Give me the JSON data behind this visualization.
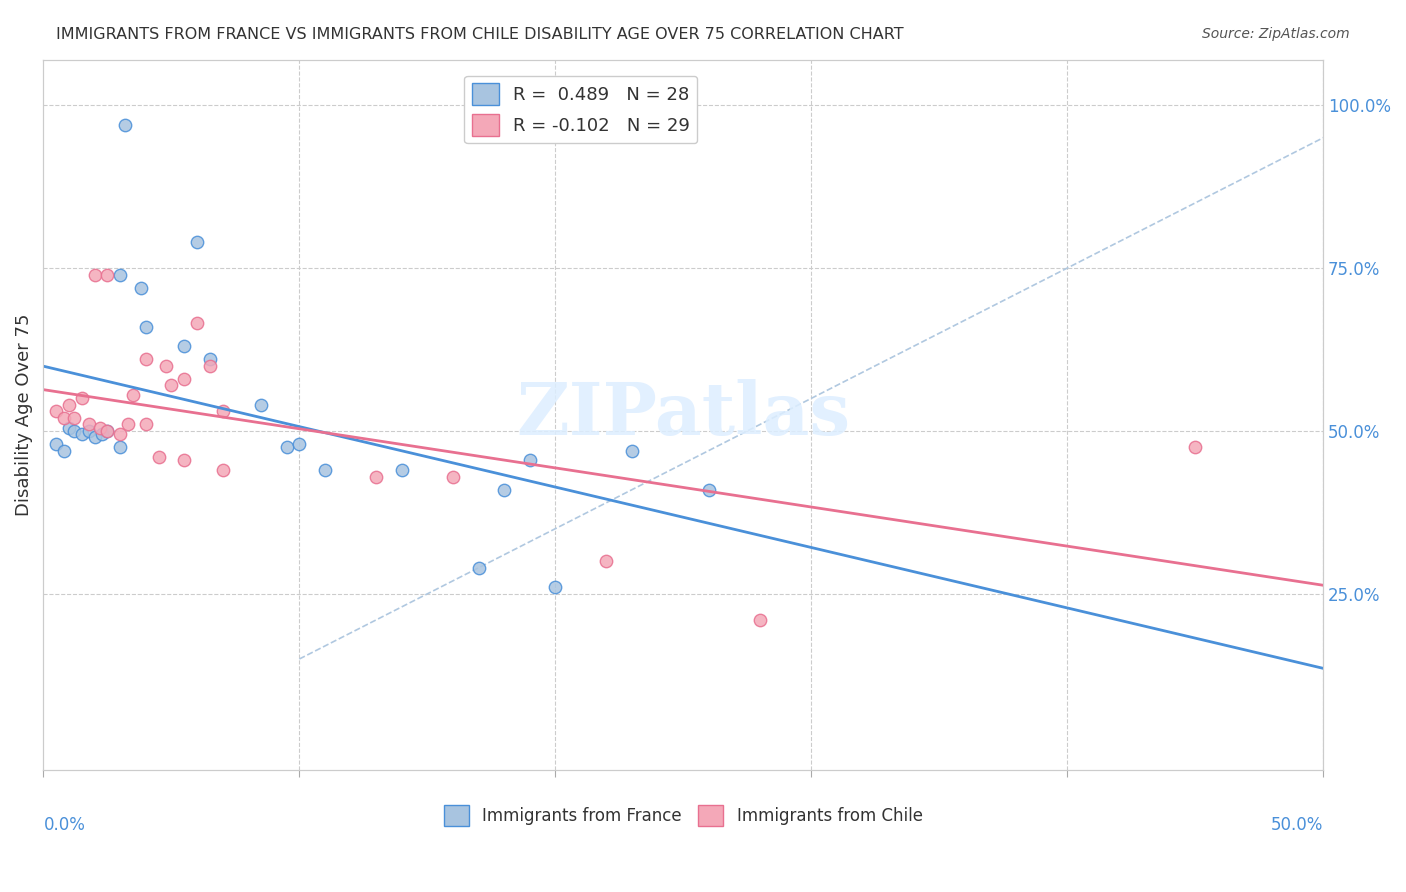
{
  "title": "IMMIGRANTS FROM FRANCE VS IMMIGRANTS FROM CHILE DISABILITY AGE OVER 75 CORRELATION CHART",
  "source": "Source: ZipAtlas.com",
  "ylabel": "Disability Age Over 75",
  "ytick_labels": [
    "100.0%",
    "75.0%",
    "50.0%",
    "25.0%"
  ],
  "ytick_positions": [
    1.0,
    0.75,
    0.5,
    0.25
  ],
  "xlim": [
    0.0,
    0.5
  ],
  "ylim": [
    -0.02,
    1.07
  ],
  "legend_france_R": "0.489",
  "legend_france_N": "28",
  "legend_chile_R": "-0.102",
  "legend_chile_N": "29",
  "france_color": "#a8c4e0",
  "chile_color": "#f4a8b8",
  "france_line_color": "#4a90d9",
  "chile_line_color": "#e87090",
  "diagonal_color": "#b0c8e0",
  "france_scatter": [
    [
      0.032,
      0.97
    ],
    [
      0.06,
      0.79
    ],
    [
      0.03,
      0.74
    ],
    [
      0.038,
      0.72
    ],
    [
      0.04,
      0.66
    ],
    [
      0.055,
      0.63
    ],
    [
      0.065,
      0.61
    ],
    [
      0.085,
      0.54
    ],
    [
      0.01,
      0.505
    ],
    [
      0.012,
      0.5
    ],
    [
      0.015,
      0.495
    ],
    [
      0.018,
      0.5
    ],
    [
      0.02,
      0.49
    ],
    [
      0.023,
      0.495
    ],
    [
      0.03,
      0.475
    ],
    [
      0.005,
      0.48
    ],
    [
      0.008,
      0.47
    ],
    [
      0.025,
      0.5
    ],
    [
      0.095,
      0.475
    ],
    [
      0.1,
      0.48
    ],
    [
      0.11,
      0.44
    ],
    [
      0.14,
      0.44
    ],
    [
      0.19,
      0.455
    ],
    [
      0.23,
      0.47
    ],
    [
      0.18,
      0.41
    ],
    [
      0.26,
      0.41
    ],
    [
      0.17,
      0.29
    ],
    [
      0.2,
      0.26
    ]
  ],
  "chile_scatter": [
    [
      0.005,
      0.53
    ],
    [
      0.008,
      0.52
    ],
    [
      0.01,
      0.54
    ],
    [
      0.012,
      0.52
    ],
    [
      0.015,
      0.55
    ],
    [
      0.018,
      0.51
    ],
    [
      0.022,
      0.505
    ],
    [
      0.025,
      0.5
    ],
    [
      0.03,
      0.495
    ],
    [
      0.035,
      0.555
    ],
    [
      0.04,
      0.61
    ],
    [
      0.048,
      0.6
    ],
    [
      0.05,
      0.57
    ],
    [
      0.055,
      0.58
    ],
    [
      0.06,
      0.665
    ],
    [
      0.065,
      0.6
    ],
    [
      0.07,
      0.53
    ],
    [
      0.02,
      0.74
    ],
    [
      0.025,
      0.74
    ],
    [
      0.033,
      0.51
    ],
    [
      0.04,
      0.51
    ],
    [
      0.045,
      0.46
    ],
    [
      0.055,
      0.455
    ],
    [
      0.07,
      0.44
    ],
    [
      0.13,
      0.43
    ],
    [
      0.16,
      0.43
    ],
    [
      0.22,
      0.3
    ],
    [
      0.28,
      0.21
    ],
    [
      0.45,
      0.475
    ]
  ],
  "watermark": "ZIPatlas",
  "background_color": "#ffffff"
}
